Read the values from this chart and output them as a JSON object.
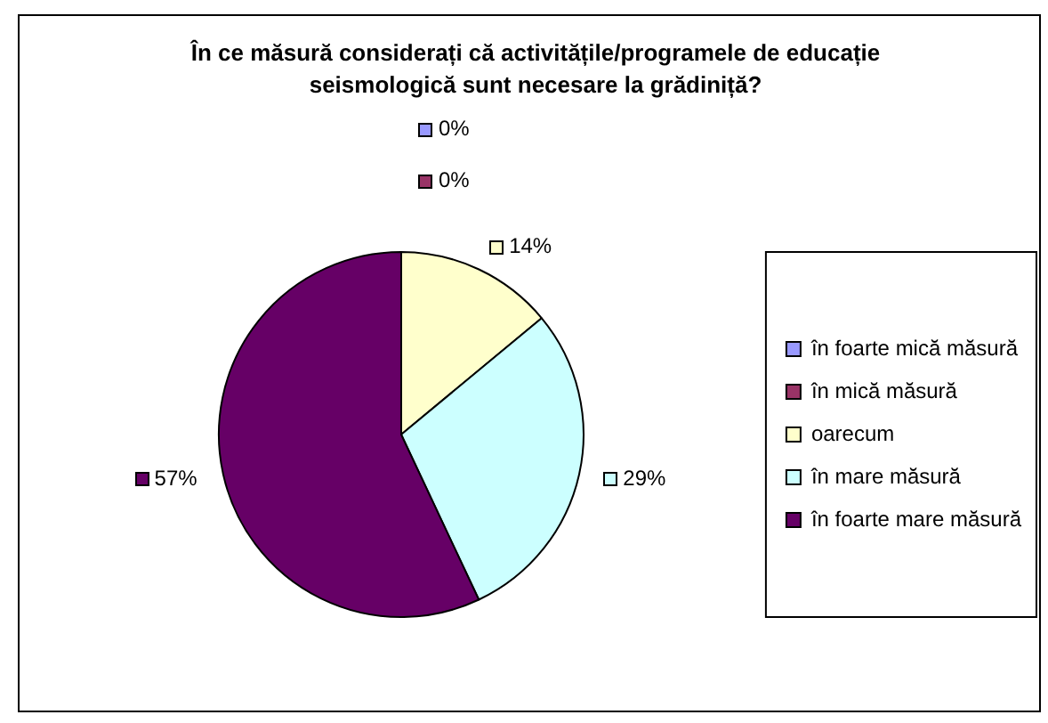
{
  "chart_data": {
    "type": "pie",
    "title": "În ce măsură considerați că activitățile/programele de educație seismologică sunt necesare la grădiniță?",
    "categories": [
      "în foarte mică măsură",
      "în mică măsură",
      "oarecum",
      "în mare măsură",
      "în foarte mare măsură"
    ],
    "values": [
      0,
      0,
      14,
      29,
      57
    ],
    "colors": [
      "#9999ff",
      "#993366",
      "#ffffcc",
      "#ccffff",
      "#660066"
    ],
    "value_labels": [
      "0%",
      "0%",
      "14%",
      "29%",
      "57%"
    ],
    "legend": "right"
  }
}
